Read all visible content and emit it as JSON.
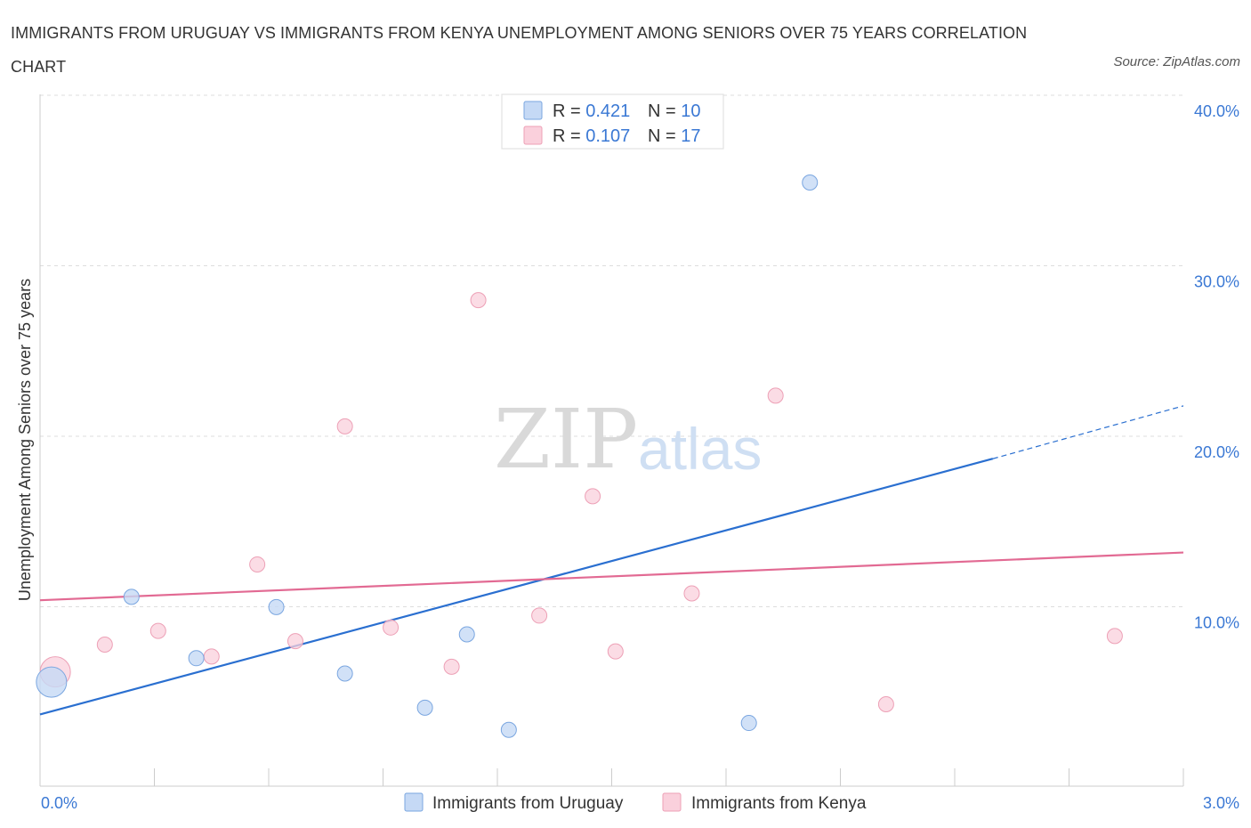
{
  "title": "IMMIGRANTS FROM URUGUAY VS IMMIGRANTS FROM KENYA UNEMPLOYMENT AMONG SENIORS OVER 75 YEARS CORRELATION CHART",
  "source": "Source: ZipAtlas.com",
  "watermark": {
    "zip": "ZIP",
    "atlas": "atlas"
  },
  "legend_top": [
    {
      "r_label": "R = ",
      "r_value": "0.421",
      "n_label": "N = ",
      "n_value": "10"
    },
    {
      "r_label": "R = ",
      "r_value": "0.107",
      "n_label": "N = ",
      "n_value": "17"
    }
  ],
  "colors": {
    "uruguay_fill": "#c5d9f5",
    "uruguay_stroke": "#7aa6e0",
    "uruguay_line": "#2a6fd0",
    "kenya_fill": "#fad0dc",
    "kenya_stroke": "#eda0b6",
    "kenya_line": "#e26a93",
    "grid": "#dddddd",
    "axis": "#cccccc"
  },
  "chart_data": {
    "type": "scatter",
    "title": "IMMIGRANTS FROM URUGUAY VS IMMIGRANTS FROM KENYA UNEMPLOYMENT AMONG SENIORS OVER 75 YEARS CORRELATION CHART",
    "xlabel": "",
    "ylabel": "Unemployment Among Seniors over 75 years",
    "xlim": [
      0,
      3.0
    ],
    "ylim": [
      0,
      40
    ],
    "x_tick_labels": [
      "0.0%",
      "3.0%"
    ],
    "y_ticks": [
      10,
      20,
      30,
      40
    ],
    "y_tick_labels": [
      "10.0%",
      "20.0%",
      "30.0%",
      "40.0%"
    ],
    "grid": true,
    "legend_position": "top-center",
    "series": [
      {
        "name": "Immigrants from Uruguay",
        "points": [
          {
            "x": 0.03,
            "y": 6.0,
            "size": "large"
          },
          {
            "x": 0.24,
            "y": 11.0
          },
          {
            "x": 0.41,
            "y": 7.4
          },
          {
            "x": 0.62,
            "y": 10.4
          },
          {
            "x": 0.8,
            "y": 6.5
          },
          {
            "x": 1.01,
            "y": 4.5
          },
          {
            "x": 1.12,
            "y": 8.8
          },
          {
            "x": 1.23,
            "y": 3.2
          },
          {
            "x": 1.86,
            "y": 3.6
          },
          {
            "x": 2.02,
            "y": 35.3
          }
        ],
        "trend": {
          "x0": 0.0,
          "y0": 4.1,
          "x1": 2.5,
          "y1": 19.1,
          "dashed_to_x": 3.0,
          "dashed_to_y": 22.2
        }
      },
      {
        "name": "Immigrants from Kenya",
        "points": [
          {
            "x": 0.04,
            "y": 6.6,
            "size": "large"
          },
          {
            "x": 0.17,
            "y": 8.2
          },
          {
            "x": 0.31,
            "y": 9.0
          },
          {
            "x": 0.45,
            "y": 7.5
          },
          {
            "x": 0.57,
            "y": 12.9
          },
          {
            "x": 0.67,
            "y": 8.4
          },
          {
            "x": 0.8,
            "y": 21.0
          },
          {
            "x": 0.92,
            "y": 9.2
          },
          {
            "x": 1.08,
            "y": 6.9
          },
          {
            "x": 1.15,
            "y": 28.4
          },
          {
            "x": 1.31,
            "y": 9.9
          },
          {
            "x": 1.45,
            "y": 16.9
          },
          {
            "x": 1.51,
            "y": 7.8
          },
          {
            "x": 1.71,
            "y": 11.2
          },
          {
            "x": 1.93,
            "y": 22.8
          },
          {
            "x": 2.22,
            "y": 4.7
          },
          {
            "x": 2.82,
            "y": 8.7
          }
        ],
        "trend": {
          "x0": 0.0,
          "y0": 10.8,
          "x1": 3.0,
          "y1": 13.6
        }
      }
    ]
  }
}
